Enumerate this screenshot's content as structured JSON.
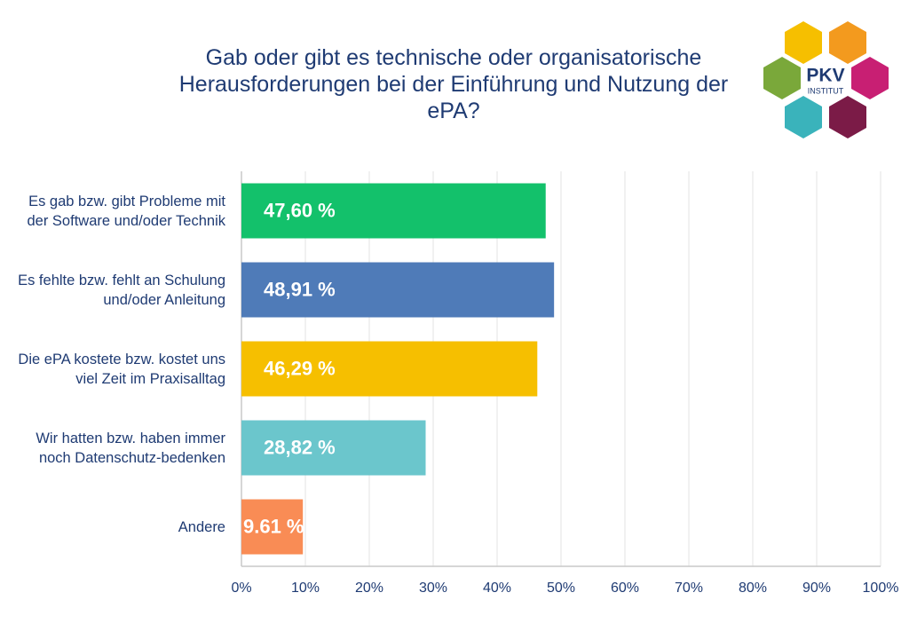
{
  "chart_data": {
    "type": "hbar",
    "title": "Gab oder gibt es technische oder organisatorische Herausforderungen bei der Einführung und Nutzung der ePA?",
    "categories": [
      "Es gab bzw. gibt Probleme mit der Software und/oder Technik",
      "Es fehlte bzw. fehlt an Schulung und/oder Anleitung",
      "Die ePA kostete bzw. kostet uns viel Zeit im Praxisalltag",
      "Wir hatten bzw. haben immer noch Datenschutz-bedenken",
      "Andere"
    ],
    "values": [
      47.6,
      48.91,
      46.29,
      28.82,
      9.61
    ],
    "value_labels": [
      "47,60 %",
      "48,91 %",
      "46,29 %",
      "28,82 %",
      "9.61 %"
    ],
    "colors": [
      "#13c16b",
      "#4f7bb8",
      "#f6bf00",
      "#6bc6cc",
      "#f98c55"
    ],
    "xlim": [
      0,
      100
    ],
    "xticks": [
      {
        "value": 0,
        "label": "0%"
      },
      {
        "value": 10,
        "label": "10%"
      },
      {
        "value": 20,
        "label": "20%"
      },
      {
        "value": 30,
        "label": "30%"
      },
      {
        "value": 40,
        "label": "40%"
      },
      {
        "value": 50,
        "label": "50%"
      },
      {
        "value": 60,
        "label": "60%"
      },
      {
        "value": 70,
        "label": "70%"
      },
      {
        "value": 80,
        "label": "80%"
      },
      {
        "value": 90,
        "label": "90%"
      },
      {
        "value": 100,
        "label": "100%"
      }
    ],
    "grid": true
  },
  "logo": {
    "name": "PKV",
    "subtitle": "INSTITUT"
  }
}
